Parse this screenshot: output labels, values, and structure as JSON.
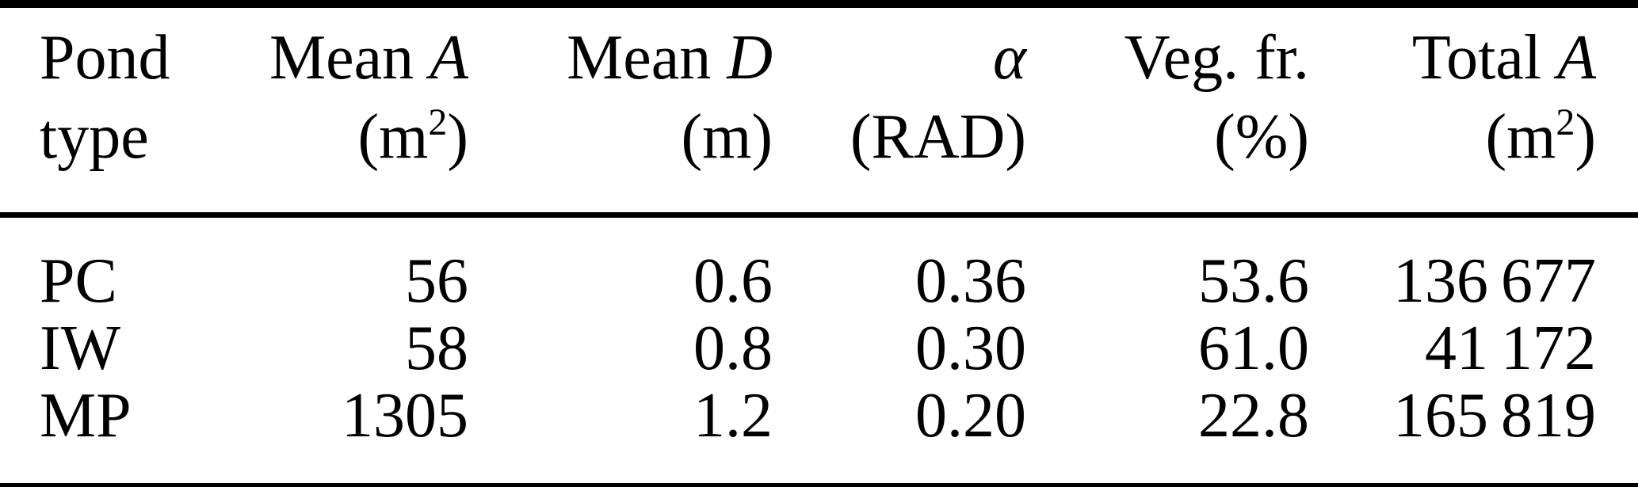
{
  "table": {
    "description": "Pond type statistics table",
    "text_color": "#000000",
    "background": "#ffffff",
    "columns": [
      {
        "id": "pond-type",
        "header_line1": "Pond",
        "header_line1_math": "",
        "header_line2_pre": "type",
        "header_line2_sup": "",
        "header_line2_post": ""
      },
      {
        "id": "mean-area",
        "header_line1": "Mean ",
        "header_line1_math": "A",
        "header_line2_pre": "(m",
        "header_line2_sup": "2",
        "header_line2_post": ")"
      },
      {
        "id": "mean-depth",
        "header_line1": "Mean ",
        "header_line1_math": "D",
        "header_line2_pre": "(m",
        "header_line2_sup": "",
        "header_line2_post": ")"
      },
      {
        "id": "alpha",
        "header_line1": "",
        "header_line1_math": "α",
        "header_line2_pre": "(RAD",
        "header_line2_sup": "",
        "header_line2_post": ")"
      },
      {
        "id": "veg-fraction",
        "header_line1": "Veg. fr.",
        "header_line1_math": "",
        "header_line2_pre": "(%",
        "header_line2_sup": "",
        "header_line2_post": ")"
      },
      {
        "id": "total-area",
        "header_line1": "Total ",
        "header_line1_math": "A",
        "header_line2_pre": "(m",
        "header_line2_sup": "2",
        "header_line2_post": ")"
      }
    ],
    "rows": [
      {
        "cells": [
          "PC",
          "56",
          "0.6",
          "0.36",
          "53.6",
          "136 677"
        ]
      },
      {
        "cells": [
          "IW",
          "58",
          "0.8",
          "0.30",
          "61.0",
          "41 172"
        ]
      },
      {
        "cells": [
          "MP",
          "1305",
          "1.2",
          "0.20",
          "22.8",
          "165 819"
        ]
      }
    ]
  }
}
